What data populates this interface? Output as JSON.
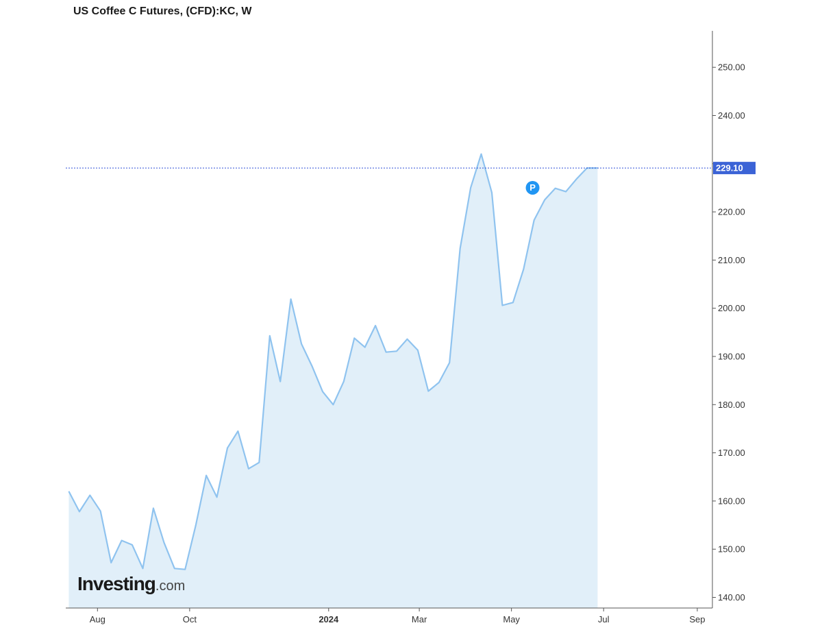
{
  "title": "US Coffee C Futures, (CFD):KC, W",
  "logo": {
    "brand": "Investing",
    "tld": ".com"
  },
  "colors": {
    "line": "#8fc3ef",
    "area": "#e1eff9",
    "price_line": "#2e4fd6",
    "price_tag_bg": "#3b63d6",
    "marker": "#2196f3",
    "axis": "#555555"
  },
  "chart_data": {
    "type": "area",
    "title": "US Coffee C Futures, (CFD):KC, W",
    "xlabel": "",
    "ylabel": "",
    "ylim": [
      137,
      257
    ],
    "y_ticks": [
      140,
      150,
      160,
      170,
      180,
      190,
      200,
      210,
      220,
      230,
      240,
      250
    ],
    "y_tick_labels": [
      "140.00",
      "150.00",
      "160.00",
      "170.00",
      "180.00",
      "190.00",
      "200.00",
      "210.00",
      "220.00",
      "",
      "240.00",
      "250.00"
    ],
    "x_ticks": [
      {
        "label": "Aug",
        "date": "2023-08-01",
        "bold": false
      },
      {
        "label": "Oct",
        "date": "2023-10-01",
        "bold": false
      },
      {
        "label": "2024",
        "date": "2024-01-01",
        "bold": true
      },
      {
        "label": "Mar",
        "date": "2024-03-01",
        "bold": false
      },
      {
        "label": "May",
        "date": "2024-05-01",
        "bold": false
      },
      {
        "label": "Jul",
        "date": "2024-07-01",
        "bold": false
      },
      {
        "label": "Sep",
        "date": "2024-09-01",
        "bold": false
      }
    ],
    "x_range": [
      "2023-07-11",
      "2024-09-11"
    ],
    "grid": false,
    "last_price": {
      "value": 229.1,
      "label": "229.10"
    },
    "marker": {
      "label": "P",
      "date": "2024-05-15",
      "value": 225
    },
    "series": [
      {
        "x": [
          "2023-07-13",
          "2023-07-20",
          "2023-07-27",
          "2023-08-03",
          "2023-08-10",
          "2023-08-17",
          "2023-08-24",
          "2023-08-31",
          "2023-09-07",
          "2023-09-14",
          "2023-09-21",
          "2023-09-28",
          "2023-10-05",
          "2023-10-12",
          "2023-10-19",
          "2023-10-26",
          "2023-11-02",
          "2023-11-09",
          "2023-11-16",
          "2023-11-23",
          "2023-11-30",
          "2023-12-07",
          "2023-12-14",
          "2023-12-21",
          "2023-12-28",
          "2024-01-04",
          "2024-01-11",
          "2024-01-18",
          "2024-01-25",
          "2024-02-01",
          "2024-02-08",
          "2024-02-15",
          "2024-02-22",
          "2024-02-29",
          "2024-03-07",
          "2024-03-14",
          "2024-03-21",
          "2024-03-28",
          "2024-04-04",
          "2024-04-11",
          "2024-04-18",
          "2024-04-25",
          "2024-05-02",
          "2024-05-09",
          "2024-05-16",
          "2024-05-23",
          "2024-05-30",
          "2024-06-06",
          "2024-06-13",
          "2024-06-20",
          "2024-06-27"
        ],
        "values": [
          162.0,
          157.8,
          161.2,
          157.9,
          147.2,
          151.8,
          150.9,
          146.0,
          158.5,
          151.4,
          146.0,
          145.8,
          154.9,
          165.3,
          160.8,
          171.0,
          174.5,
          166.7,
          168.0,
          194.3,
          184.8,
          201.9,
          192.6,
          188.0,
          182.7,
          180.0,
          184.8,
          193.8,
          191.9,
          196.4,
          190.9,
          191.1,
          193.6,
          191.3,
          182.8,
          184.6,
          188.7,
          212.4,
          225.0,
          232.0,
          224.0,
          200.6,
          201.2,
          208.1,
          218.3,
          222.5,
          224.9,
          224.2,
          226.8,
          229.1,
          229.1
        ]
      }
    ]
  }
}
